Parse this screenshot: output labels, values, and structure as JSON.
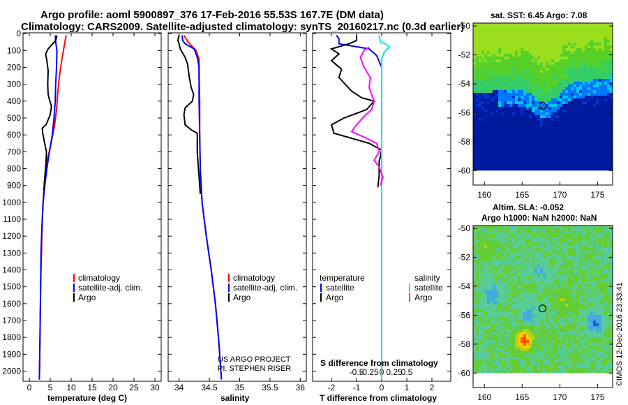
{
  "header": {
    "title_line1": "Argo profile: aoml 5900897_376 17-Feb-2016 55.53S 167.7E (DM data)",
    "title_line2": "Climatology: CARS2009. Satellite-adjusted climatology: synTS_20160217.nc (0.3d earlier)"
  },
  "colors": {
    "climatology": "#ff0000",
    "satellite": "#0000ff",
    "argo": "#000000",
    "salinity_satellite": "#00e5ee",
    "salinity_argo": "#ff00ff"
  },
  "depth_ticks": [
    "0",
    "100",
    "200",
    "300",
    "400",
    "500",
    "600",
    "700",
    "800",
    "900",
    "1000",
    "1100",
    "1200",
    "1300",
    "1400",
    "1500",
    "1600",
    "1700",
    "1800",
    "1900",
    "2000"
  ],
  "watermark": {
    "project": "US ARGO PROJECT",
    "pi": "PI: STEPHEN RISER"
  },
  "stamp": "©IMOS 12-Dec-2016 23:33:41",
  "chart_data": [
    {
      "type": "line",
      "panel": "temperature",
      "xlabel": "temperature (deg C)",
      "xticks": [
        "0",
        "5",
        "10",
        "15",
        "20",
        "25",
        "30"
      ],
      "xlim": [
        -1.5,
        31.5
      ],
      "ylim": [
        2060,
        -5
      ],
      "legend": [
        "climatology",
        "satellite-adj. clim.",
        "Argo"
      ],
      "series": [
        {
          "name": "climatology",
          "color": "#ff0000",
          "points": [
            [
              8.8,
              10
            ],
            [
              8.5,
              50
            ],
            [
              7.8,
              150
            ],
            [
              7.2,
              250
            ],
            [
              6.8,
              350
            ],
            [
              6.5,
              450
            ],
            [
              6.0,
              550
            ],
            [
              5.2,
              650
            ],
            [
              4.3,
              750
            ],
            [
              3.8,
              850
            ],
            [
              3.4,
              950
            ],
            [
              3.1,
              1100
            ],
            [
              2.9,
              1300
            ],
            [
              2.7,
              1500
            ],
            [
              2.6,
              1700
            ],
            [
              2.5,
              1900
            ],
            [
              2.4,
              2050
            ]
          ]
        },
        {
          "name": "satellite-adj. clim.",
          "color": "#0000ff",
          "points": [
            [
              6.2,
              10
            ],
            [
              6.3,
              50
            ],
            [
              6.6,
              100
            ],
            [
              6.5,
              200
            ],
            [
              6.3,
              300
            ],
            [
              6.2,
              400
            ],
            [
              5.9,
              500
            ],
            [
              5.5,
              600
            ],
            [
              4.8,
              700
            ],
            [
              4.2,
              800
            ],
            [
              3.7,
              900
            ],
            [
              3.3,
              1000
            ],
            [
              3.0,
              1150
            ],
            [
              2.8,
              1300
            ],
            [
              2.7,
              1500
            ],
            [
              2.6,
              1700
            ],
            [
              2.5,
              1900
            ],
            [
              2.4,
              2050
            ]
          ]
        },
        {
          "name": "Argo",
          "color": "#000000",
          "points": [
            [
              6.6,
              10
            ],
            [
              6.3,
              40
            ],
            [
              5.6,
              60
            ],
            [
              4.5,
              90
            ],
            [
              3.9,
              120
            ],
            [
              4.2,
              160
            ],
            [
              4.5,
              220
            ],
            [
              4.4,
              300
            ],
            [
              4.5,
              360
            ],
            [
              4.8,
              390
            ],
            [
              5.3,
              430
            ],
            [
              5.0,
              480
            ],
            [
              4.0,
              540
            ],
            [
              3.1,
              560
            ],
            [
              3.2,
              590
            ],
            [
              3.6,
              640
            ],
            [
              4.1,
              700
            ],
            [
              4.0,
              760
            ],
            [
              3.8,
              820
            ],
            [
              3.6,
              880
            ],
            [
              3.5,
              930
            ]
          ]
        }
      ]
    },
    {
      "type": "line",
      "panel": "salinity",
      "xlabel": "salinity",
      "xticks": [
        "34",
        "34.5",
        "35",
        "35.5",
        "36"
      ],
      "xlim": [
        33.82,
        36.1
      ],
      "ylim": [
        2060,
        -5
      ],
      "legend": [
        "climatology",
        "satellite-adj. clim.",
        "Argo"
      ],
      "series": [
        {
          "name": "climatology",
          "color": "#ff0000",
          "points": [
            [
              34.08,
              10
            ],
            [
              34.15,
              50
            ],
            [
              34.28,
              100
            ],
            [
              34.33,
              150
            ],
            [
              34.33,
              250
            ],
            [
              34.34,
              400
            ],
            [
              34.34,
              600
            ],
            [
              34.35,
              800
            ],
            [
              34.38,
              1000
            ],
            [
              34.45,
              1200
            ],
            [
              34.53,
              1400
            ],
            [
              34.6,
              1600
            ],
            [
              34.65,
              1800
            ],
            [
              34.7,
              2050
            ]
          ]
        },
        {
          "name": "satellite-adj. clim.",
          "color": "#0000ff",
          "points": [
            [
              34.05,
              10
            ],
            [
              34.06,
              40
            ],
            [
              34.1,
              60
            ],
            [
              34.25,
              90
            ],
            [
              34.3,
              140
            ],
            [
              34.33,
              200
            ],
            [
              34.33,
              400
            ],
            [
              34.34,
              600
            ],
            [
              34.35,
              800
            ],
            [
              34.38,
              1000
            ],
            [
              34.45,
              1200
            ],
            [
              34.53,
              1400
            ],
            [
              34.6,
              1600
            ],
            [
              34.65,
              1800
            ],
            [
              34.7,
              2050
            ]
          ]
        },
        {
          "name": "Argo",
          "color": "#000000",
          "points": [
            [
              34.0,
              10
            ],
            [
              33.98,
              40
            ],
            [
              34.0,
              60
            ],
            [
              34.02,
              90
            ],
            [
              34.05,
              110
            ],
            [
              34.1,
              140
            ],
            [
              34.14,
              180
            ],
            [
              34.17,
              260
            ],
            [
              34.2,
              320
            ],
            [
              34.24,
              360
            ],
            [
              34.22,
              400
            ],
            [
              34.1,
              440
            ],
            [
              34.08,
              480
            ],
            [
              34.1,
              540
            ],
            [
              34.2,
              570
            ],
            [
              34.3,
              590
            ],
            [
              34.3,
              700
            ],
            [
              34.32,
              800
            ],
            [
              34.34,
              900
            ],
            [
              34.35,
              950
            ]
          ]
        }
      ]
    },
    {
      "type": "line",
      "panel": "difference",
      "xlabel": "T difference from climatology",
      "x2label": "S difference from climatology",
      "xticks": [
        "-2",
        "-1",
        "0",
        "1",
        "2"
      ],
      "x2ticks": [
        "-0.5",
        "-0.25",
        "0",
        "0.25",
        "0.5"
      ],
      "xlim": [
        -2.75,
        2.75
      ],
      "ylim": [
        2060,
        -5
      ],
      "legend_left": {
        "title": "temperature",
        "entries": [
          "satellite",
          "Argo"
        ]
      },
      "legend_right": {
        "title": "salinity",
        "entries": [
          "satellite",
          "Argo"
        ]
      },
      "series": [
        {
          "name": "satellite",
          "quantity": "temperature",
          "color": "#0000ff",
          "points": [
            [
              -1.8,
              10
            ],
            [
              -1.7,
              30
            ],
            [
              -1.7,
              60
            ],
            [
              -0.5,
              90
            ],
            [
              -0.2,
              130
            ],
            [
              0,
              200
            ],
            [
              0,
              800
            ],
            [
              0,
              1500
            ],
            [
              0,
              2050
            ]
          ]
        },
        {
          "name": "Argo",
          "quantity": "temperature",
          "color": "#000000",
          "points": [
            [
              -1.0,
              10
            ],
            [
              -1.0,
              40
            ],
            [
              -1.3,
              60
            ],
            [
              -2.0,
              90
            ],
            [
              -1.7,
              120
            ],
            [
              -2.0,
              160
            ],
            [
              -1.6,
              210
            ],
            [
              -1.7,
              260
            ],
            [
              -1.2,
              340
            ],
            [
              -0.8,
              380
            ],
            [
              -0.3,
              400
            ],
            [
              -0.6,
              450
            ],
            [
              -1.5,
              500
            ],
            [
              -2.0,
              540
            ],
            [
              -1.9,
              590
            ],
            [
              -1.2,
              620
            ],
            [
              -0.5,
              650
            ],
            [
              0,
              690
            ],
            [
              -0.1,
              760
            ],
            [
              -0.1,
              840
            ],
            [
              -0.15,
              910
            ]
          ]
        },
        {
          "name": "satellite",
          "quantity": "salinity",
          "color": "#00e5ee",
          "points": [
            [
              -0.1,
              10
            ],
            [
              -0.05,
              50
            ],
            [
              0.15,
              60
            ],
            [
              0.3,
              80
            ],
            [
              0.1,
              110
            ],
            [
              0,
              150
            ],
            [
              0,
              400
            ],
            [
              0,
              800
            ],
            [
              0,
              1500
            ],
            [
              0,
              2050
            ]
          ]
        },
        {
          "name": "Argo",
          "quantity": "salinity",
          "color": "#ff00ff",
          "points": [
            [
              -0.5,
              80
            ],
            [
              -0.7,
              100
            ],
            [
              -0.85,
              140
            ],
            [
              -0.7,
              200
            ],
            [
              -0.45,
              260
            ],
            [
              -0.5,
              320
            ],
            [
              -0.3,
              400
            ],
            [
              -0.4,
              450
            ],
            [
              -0.7,
              490
            ],
            [
              -1.0,
              540
            ],
            [
              -1.2,
              580
            ],
            [
              -0.6,
              620
            ],
            [
              -0.2,
              650
            ],
            [
              -0.1,
              700
            ],
            [
              -0.3,
              750
            ],
            [
              -0.1,
              790
            ],
            [
              0.05,
              850
            ],
            [
              -0.05,
              900
            ]
          ]
        }
      ]
    },
    {
      "type": "heatmap",
      "panel": "sst_map",
      "title": "sat. SST: 6.45 Argo: 7.08",
      "xticks": [
        "160",
        "165",
        "170",
        "175"
      ],
      "yticks": [
        "-50",
        "-52",
        "-54",
        "-56",
        "-58",
        "-60"
      ],
      "xlim": [
        158.5,
        177
      ],
      "ylim": [
        -61,
        -49.8
      ],
      "marker": {
        "lon": 167.7,
        "lat": -55.53
      }
    },
    {
      "type": "heatmap",
      "panel": "sla_map",
      "title_line1": "Altim. SLA: -0.052",
      "title_line2": "Argo h1000: NaN h2000: NaN",
      "xticks": [
        "160",
        "165",
        "170",
        "175"
      ],
      "yticks": [
        "-50",
        "-52",
        "-54",
        "-56",
        "-58",
        "-60"
      ],
      "xlim": [
        158.5,
        177
      ],
      "ylim": [
        -61,
        -49.8
      ],
      "marker": {
        "lon": 167.7,
        "lat": -55.53
      }
    }
  ]
}
